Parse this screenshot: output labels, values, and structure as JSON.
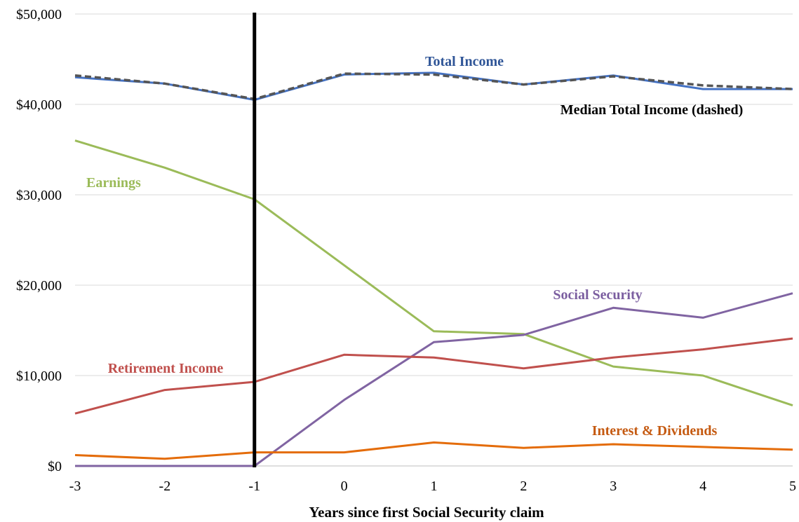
{
  "chart_data": {
    "type": "line",
    "title": "",
    "xlabel": "Years since first Social Security claim",
    "ylabel": "",
    "x": [
      -3,
      -2,
      -1,
      0,
      1,
      2,
      3,
      4,
      5
    ],
    "x_tick_labels": [
      "-3",
      "-2",
      "-1",
      "0",
      "1",
      "2",
      "3",
      "4",
      "5"
    ],
    "xlim": [
      -3,
      5
    ],
    "ylim": [
      0,
      50000
    ],
    "y_ticks": [
      0,
      10000,
      20000,
      30000,
      40000,
      50000
    ],
    "y_tick_labels": [
      "$0",
      "$10,000",
      "$20,000",
      "$30,000",
      "$40,000",
      "$50,000"
    ],
    "grid": "horizontal",
    "legend": "none (inline series labels)",
    "reference_line": {
      "x": -1,
      "color": "#000000"
    },
    "series": [
      {
        "name": "Total Income",
        "color": "#4472c4",
        "style": "solid",
        "values": [
          43000,
          42300,
          40500,
          43300,
          43500,
          42200,
          43200,
          41700,
          41700
        ]
      },
      {
        "name": "Median Total Income (dashed)",
        "color": "#555555",
        "style": "dashed",
        "values": [
          43200,
          42300,
          40600,
          43400,
          43300,
          42200,
          43100,
          42100,
          41700
        ]
      },
      {
        "name": "Earnings",
        "color": "#9bbb59",
        "style": "solid",
        "values": [
          36000,
          33000,
          29500,
          22200,
          14900,
          14600,
          11000,
          10000,
          6700
        ]
      },
      {
        "name": "Social Security",
        "color": "#8064a2",
        "style": "solid",
        "values": [
          0,
          0,
          0,
          7300,
          13700,
          14500,
          17500,
          16400,
          19100
        ]
      },
      {
        "name": "Retirement Income",
        "color": "#c0504d",
        "style": "solid",
        "values": [
          5800,
          8400,
          9300,
          12300,
          12000,
          10800,
          12000,
          12900,
          14100
        ]
      },
      {
        "name": "Interest & Dividends",
        "color": "#e46c0a",
        "style": "solid",
        "values": [
          1200,
          800,
          1500,
          1500,
          2600,
          2000,
          2400,
          2100,
          1800
        ]
      }
    ]
  }
}
